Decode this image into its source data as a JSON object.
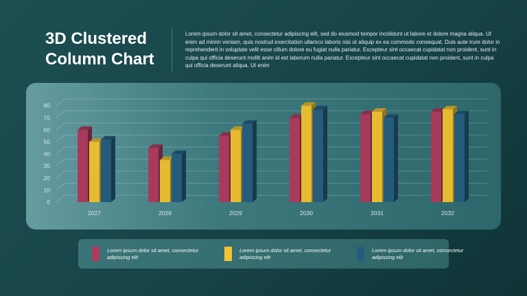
{
  "slide": {
    "title": "3D Clustered Column Chart",
    "description": "Lorem ipsum dolor sit amet, consectetur adipiscing elit, sed do eiusmod tempor incididunt ut labore et dolore magna aliqua. Ut enim ad minim veniam, quis nostrud exercitation ullamco laboris nisi ut aliquip ex ea commodo consequat. Duis aute irure dolor in reprehenderit in voluptate velit esse cillum dolore eu fugiat nulla pariatur. Excepteur sint occaecat cupidatat non proident, sunt in culpa qui officia deserunt mollit anim id est laborum nulla pariatur. Excepteur sint occaecat cupidatat non proident, sunt in culpa qui officia deserunt aliqua. Ut enim"
  },
  "legend": {
    "items": [
      {
        "label": "Lorem ipsum dolor sit amet, consectetur adipiscing elit",
        "color": "#b03a5e"
      },
      {
        "label": "Lorem ipsum dolor sit amet, consectetur adipiscing elit",
        "color": "#f2c231"
      },
      {
        "label": "Lorem ipsum dolor sit amet, consectetur adipiscing elit",
        "color": "#265d7e"
      }
    ]
  },
  "chart_data": {
    "type": "bar",
    "subtype": "3d-clustered-column",
    "categories": [
      "2027",
      "2028",
      "2029",
      "2030",
      "2031",
      "2032"
    ],
    "series": [
      {
        "values": [
          60,
          45,
          55,
          70,
          73,
          75
        ],
        "color": "#b03a5e"
      },
      {
        "values": [
          50,
          35,
          60,
          80,
          75,
          77
        ],
        "color": "#f2c231"
      },
      {
        "values": [
          52,
          40,
          65,
          77,
          70,
          73
        ],
        "color": "#265d7e"
      }
    ],
    "yticks": [
      0,
      10,
      20,
      30,
      40,
      50,
      60,
      70,
      80
    ],
    "ylim": [
      0,
      80
    ],
    "grid": true,
    "legend_position": "bottom"
  }
}
